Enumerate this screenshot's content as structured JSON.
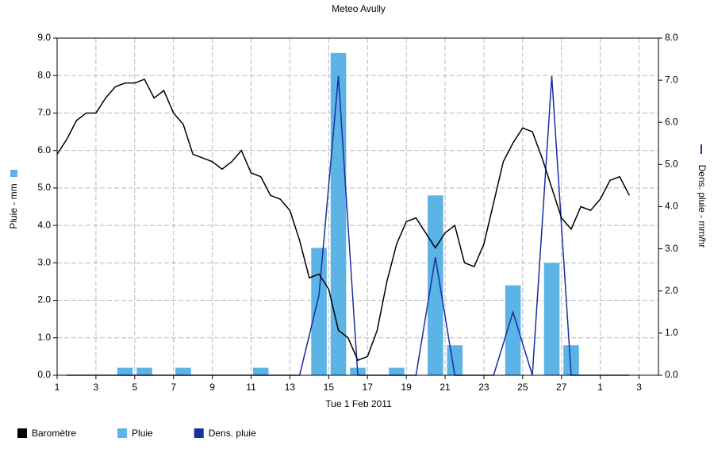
{
  "chart_data": {
    "type": "combo",
    "title": "Meteo Avully",
    "xlabel": "Tue 1 Feb 2011",
    "ylabel": "Pluie - mm",
    "y2label": "Dens. pluie - mm/hr",
    "xlim": [
      1,
      32
    ],
    "xticks": [
      1,
      3,
      5,
      7,
      9,
      11,
      13,
      15,
      17,
      19,
      21,
      23,
      25,
      27,
      {
        "value": 29,
        "label": "1"
      },
      {
        "value": 31,
        "label": "3"
      }
    ],
    "ylim": [
      0,
      9
    ],
    "yticks": [
      {
        "value": 0,
        "label": "0.0"
      },
      {
        "value": 1,
        "label": "1.0"
      },
      {
        "value": 2,
        "label": "2.0"
      },
      {
        "value": 3,
        "label": "3.0"
      },
      {
        "value": 4,
        "label": "4.0"
      },
      {
        "value": 5,
        "label": "5.0"
      },
      {
        "value": 6,
        "label": "6.0"
      },
      {
        "value": 7,
        "label": "7.0"
      },
      {
        "value": 8,
        "label": "8.0"
      },
      {
        "value": 9,
        "label": "9.0"
      }
    ],
    "y2lim": [
      0,
      8
    ],
    "y2ticks": [
      {
        "value": 0,
        "label": "0.0"
      },
      {
        "value": 1,
        "label": "1.0"
      },
      {
        "value": 2,
        "label": "2.0"
      },
      {
        "value": 3,
        "label": "3.0"
      },
      {
        "value": 4,
        "label": "4.0"
      },
      {
        "value": 5,
        "label": "5.0"
      },
      {
        "value": 6,
        "label": "6.0"
      },
      {
        "value": 7,
        "label": "7.0"
      },
      {
        "value": 8,
        "label": "8.0"
      }
    ],
    "grid": true,
    "legend": "bottom",
    "series": [
      {
        "name": "Baromètre",
        "type": "line",
        "color": "#000000",
        "x": [
          1,
          1.5,
          2,
          2.5,
          3,
          3.5,
          4,
          4.5,
          5,
          5.5,
          6,
          6.5,
          7,
          7.5,
          8,
          8.5,
          9,
          9.5,
          10,
          10.5,
          11,
          11.5,
          12,
          12.5,
          13,
          13.5,
          14,
          14.5,
          15,
          15.5,
          16,
          16.5,
          17,
          17.5,
          18,
          18.5,
          19,
          19.5,
          20,
          20.5,
          21,
          21.5,
          22,
          22.5,
          23,
          23.5,
          24,
          24.5,
          25,
          25.5,
          26,
          26.5,
          27,
          27.5,
          28,
          28.5,
          29,
          29.5,
          30,
          30.5
        ],
        "values": [
          5.9,
          6.3,
          6.8,
          7.0,
          7.0,
          7.4,
          7.7,
          7.8,
          7.8,
          7.9,
          7.4,
          7.6,
          7.0,
          6.7,
          5.9,
          5.8,
          5.7,
          5.5,
          5.7,
          6.0,
          5.4,
          5.3,
          4.8,
          4.7,
          4.4,
          3.6,
          2.6,
          2.7,
          2.3,
          1.2,
          1.0,
          0.4,
          0.5,
          1.2,
          2.5,
          3.5,
          4.1,
          4.2,
          3.8,
          3.4,
          3.8,
          4.0,
          3.0,
          2.9,
          3.5,
          4.6,
          5.7,
          6.2,
          6.6,
          6.5,
          5.8,
          5.0,
          4.2,
          3.9,
          4.5,
          4.4,
          4.7,
          5.2,
          5.3,
          4.8
        ]
      },
      {
        "name": "Pluie",
        "type": "bar",
        "color": "#5bb4e5",
        "x": [
          4.5,
          5.5,
          7.5,
          11.5,
          14.5,
          15.5,
          16.5,
          18.5,
          20.5,
          21.5,
          24.5,
          26.5,
          27.5
        ],
        "values": [
          0.2,
          0.2,
          0.2,
          0.2,
          3.4,
          8.6,
          0.2,
          0.2,
          4.8,
          0.8,
          2.4,
          3.0,
          0.8
        ]
      },
      {
        "name": "Dens. pluie",
        "type": "line",
        "axis": "y2",
        "color": "#1a2ea0",
        "x": [
          1.5,
          13.5,
          14.5,
          15.5,
          16.5,
          19.5,
          20.5,
          21.5,
          23.5,
          24.5,
          25.5,
          26.5,
          27.5,
          30.5
        ],
        "values": [
          0,
          0,
          1.9,
          7.1,
          0,
          0,
          2.8,
          0,
          0,
          1.5,
          0,
          7.1,
          0,
          0
        ]
      }
    ]
  }
}
